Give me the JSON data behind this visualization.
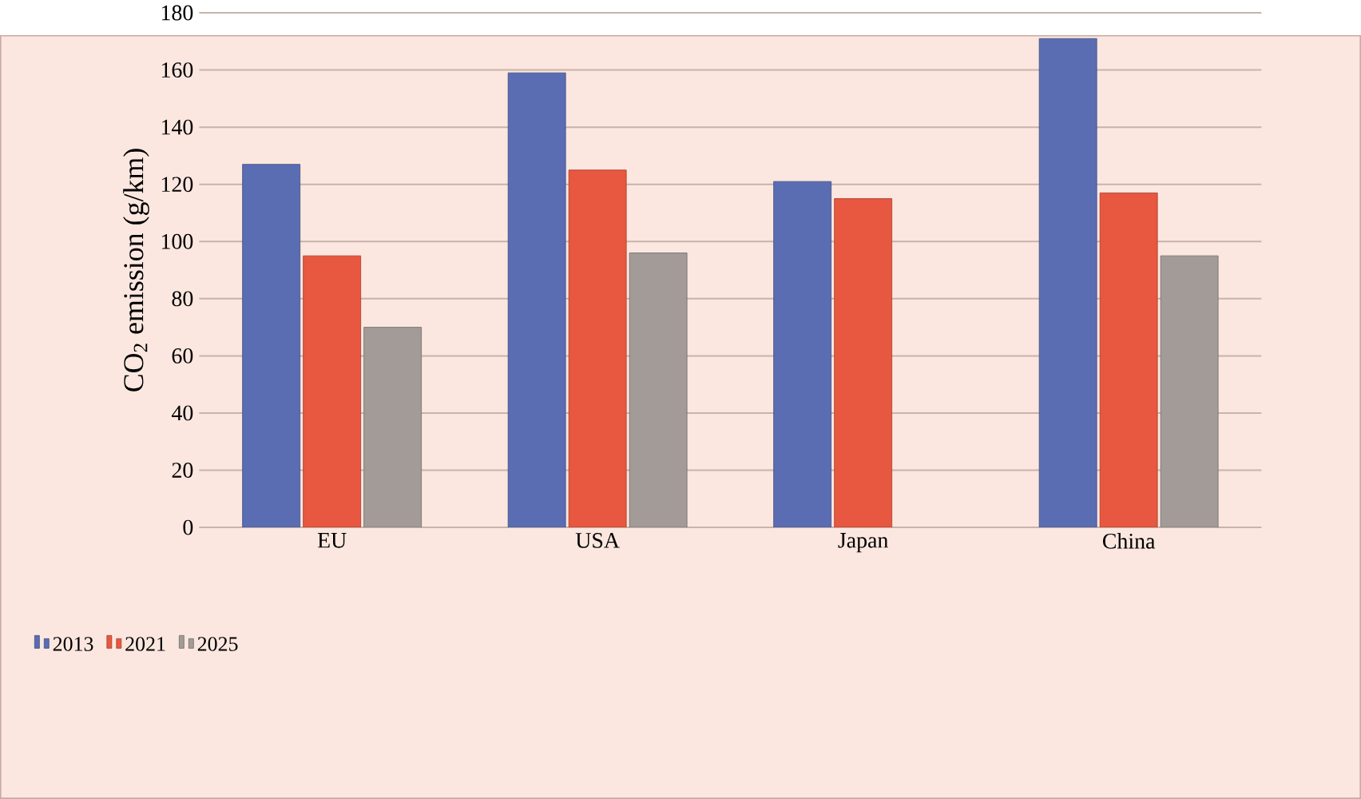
{
  "chart_data": {
    "type": "bar",
    "ylabel": "CO$_{2}$ emission (g/km)",
    "categories": [
      "EU",
      "USA",
      "Japan",
      "China"
    ],
    "series": [
      {
        "name": "2013",
        "color": "#5a6db3",
        "values": [
          127,
          159,
          121,
          171
        ]
      },
      {
        "name": "2021",
        "color": "#e8573f",
        "values": [
          95,
          125,
          115,
          117
        ]
      },
      {
        "name": "2025",
        "color": "#a29b98",
        "values": [
          70,
          96,
          null,
          95
        ]
      }
    ],
    "ylim": [
      0,
      180
    ],
    "yticks": [
      0,
      20,
      40,
      60,
      80,
      100,
      120,
      140,
      160,
      180
    ],
    "grid": "y",
    "legend": "bottom left"
  }
}
